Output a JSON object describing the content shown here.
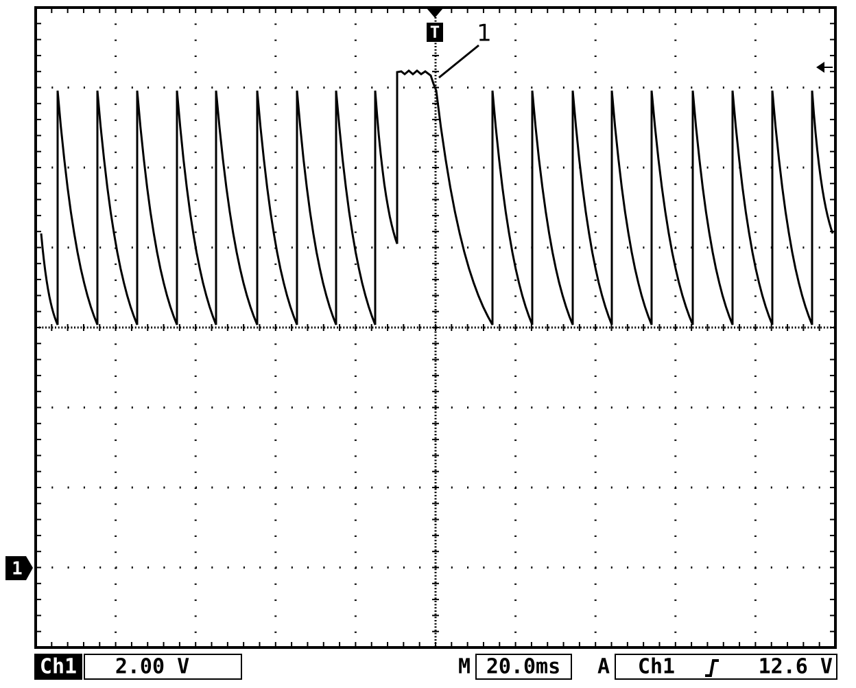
{
  "screen": {
    "trigger_marker": "T",
    "annotation": "1",
    "channel_marker": "1"
  },
  "status_bar": {
    "channel": "Ch1",
    "scale": "2.00 V",
    "time_label": "M",
    "timebase": "20.0ms",
    "trigger_label": "A",
    "trigger_source": "Ch1",
    "trigger_level": "12.6 V"
  }
}
